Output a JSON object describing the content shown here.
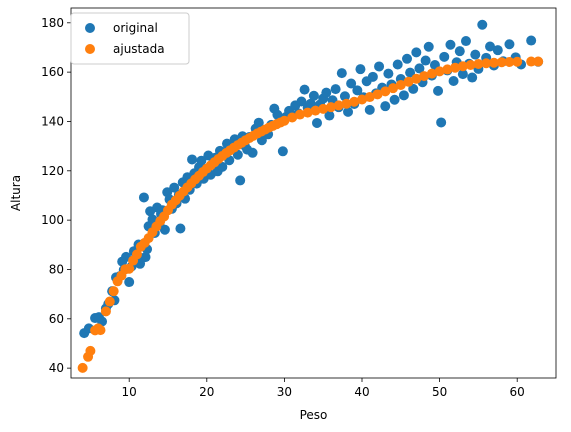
{
  "chart_data": {
    "type": "scatter",
    "xlabel": "Peso",
    "ylabel": "Altura",
    "xlim": [
      2.5,
      65
    ],
    "ylim": [
      36,
      186
    ],
    "xticks": [
      10,
      20,
      30,
      40,
      50,
      60
    ],
    "yticks": [
      40,
      60,
      80,
      100,
      120,
      140,
      160,
      180
    ],
    "grid": false,
    "legend_position": "top-left",
    "series": [
      {
        "name": "original",
        "color": "#1f77b4",
        "points": [
          [
            4.2,
            54.2
          ],
          [
            4.8,
            56.1
          ],
          [
            5.6,
            60.3
          ],
          [
            6.1,
            60.7
          ],
          [
            6.5,
            58.9
          ],
          [
            7.0,
            64.2
          ],
          [
            7.3,
            66.0
          ],
          [
            7.8,
            71.2
          ],
          [
            8.1,
            67.5
          ],
          [
            8.3,
            76.8
          ],
          [
            8.8,
            77.3
          ],
          [
            9.1,
            83.2
          ],
          [
            9.3,
            79.8
          ],
          [
            9.6,
            85.1
          ],
          [
            10.0,
            74.9
          ],
          [
            10.3,
            81.2
          ],
          [
            10.6,
            87.4
          ],
          [
            10.9,
            86.0
          ],
          [
            11.2,
            90.1
          ],
          [
            11.4,
            82.3
          ],
          [
            11.6,
            84.6
          ],
          [
            11.9,
            109.2
          ],
          [
            12.1,
            85.0
          ],
          [
            12.3,
            88.2
          ],
          [
            12.5,
            97.5
          ],
          [
            12.7,
            103.6
          ],
          [
            13.0,
            100.3
          ],
          [
            13.3,
            94.8
          ],
          [
            13.6,
            105.1
          ],
          [
            13.9,
            98.2
          ],
          [
            14.1,
            102.5
          ],
          [
            14.3,
            104.0
          ],
          [
            14.6,
            96.1
          ],
          [
            14.9,
            111.3
          ],
          [
            15.2,
            108.4
          ],
          [
            15.5,
            104.6
          ],
          [
            15.8,
            113.2
          ],
          [
            16.1,
            106.8
          ],
          [
            16.4,
            110.2
          ],
          [
            16.6,
            96.6
          ],
          [
            16.9,
            115.3
          ],
          [
            17.2,
            108.7
          ],
          [
            17.5,
            117.4
          ],
          [
            17.8,
            112.3
          ],
          [
            18.1,
            124.6
          ],
          [
            18.4,
            119.0
          ],
          [
            18.7,
            114.8
          ],
          [
            19.0,
            121.5
          ],
          [
            19.3,
            124.1
          ],
          [
            19.6,
            116.8
          ],
          [
            19.9,
            120.7
          ],
          [
            20.2,
            126.2
          ],
          [
            20.5,
            118.4
          ],
          [
            20.8,
            122.9
          ],
          [
            21.1,
            125.3
          ],
          [
            21.4,
            119.8
          ],
          [
            21.7,
            128.1
          ],
          [
            22.0,
            121.6
          ],
          [
            22.3,
            127.4
          ],
          [
            22.6,
            131.0
          ],
          [
            22.9,
            124.3
          ],
          [
            23.2,
            129.2
          ],
          [
            23.6,
            132.8
          ],
          [
            24.0,
            126.5
          ],
          [
            24.3,
            116.1
          ],
          [
            24.6,
            134.0
          ],
          [
            24.9,
            130.2
          ],
          [
            25.2,
            128.6
          ],
          [
            25.5,
            133.7
          ],
          [
            25.9,
            127.3
          ],
          [
            26.3,
            137.1
          ],
          [
            26.7,
            139.5
          ],
          [
            27.1,
            132.4
          ],
          [
            27.5,
            136.2
          ],
          [
            27.9,
            134.8
          ],
          [
            28.3,
            138.6
          ],
          [
            28.7,
            145.2
          ],
          [
            29.1,
            142.7
          ],
          [
            29.5,
            140.1
          ],
          [
            29.8,
            127.9
          ],
          [
            30.2,
            141.8
          ],
          [
            30.6,
            144.3
          ],
          [
            31.0,
            142.0
          ],
          [
            31.4,
            146.5
          ],
          [
            31.8,
            143.3
          ],
          [
            32.2,
            148.1
          ],
          [
            32.6,
            152.9
          ],
          [
            33.0,
            145.6
          ],
          [
            33.4,
            147.2
          ],
          [
            33.8,
            150.4
          ],
          [
            34.2,
            139.4
          ],
          [
            34.6,
            146.9
          ],
          [
            35.0,
            149.3
          ],
          [
            35.4,
            151.7
          ],
          [
            35.8,
            142.4
          ],
          [
            36.2,
            148.6
          ],
          [
            36.6,
            153.1
          ],
          [
            37.0,
            145.8
          ],
          [
            37.4,
            159.6
          ],
          [
            37.8,
            150.2
          ],
          [
            38.2,
            143.9
          ],
          [
            38.6,
            155.4
          ],
          [
            39.0,
            147.1
          ],
          [
            39.4,
            152.6
          ],
          [
            39.8,
            161.2
          ],
          [
            40.2,
            149.8
          ],
          [
            40.6,
            156.3
          ],
          [
            41.0,
            144.7
          ],
          [
            41.4,
            158.1
          ],
          [
            41.8,
            151.4
          ],
          [
            42.2,
            162.3
          ],
          [
            42.6,
            153.7
          ],
          [
            43.0,
            146.2
          ],
          [
            43.4,
            159.4
          ],
          [
            43.8,
            155.0
          ],
          [
            44.2,
            148.8
          ],
          [
            44.6,
            163.1
          ],
          [
            45.0,
            157.2
          ],
          [
            45.4,
            150.6
          ],
          [
            45.8,
            165.4
          ],
          [
            46.2,
            159.8
          ],
          [
            46.6,
            153.2
          ],
          [
            47.0,
            168.0
          ],
          [
            47.4,
            161.5
          ],
          [
            47.8,
            155.9
          ],
          [
            48.2,
            164.7
          ],
          [
            48.6,
            170.3
          ],
          [
            49.0,
            158.6
          ],
          [
            49.4,
            162.9
          ],
          [
            49.8,
            152.4
          ],
          [
            50.2,
            139.6
          ],
          [
            50.6,
            166.2
          ],
          [
            51.0,
            160.7
          ],
          [
            51.4,
            171.1
          ],
          [
            51.8,
            156.4
          ],
          [
            52.2,
            164.0
          ],
          [
            52.6,
            168.5
          ],
          [
            53.0,
            159.2
          ],
          [
            53.4,
            172.6
          ],
          [
            53.8,
            163.4
          ],
          [
            54.2,
            157.8
          ],
          [
            54.6,
            167.1
          ],
          [
            55.0,
            161.3
          ],
          [
            55.5,
            179.2
          ],
          [
            56.0,
            165.8
          ],
          [
            56.5,
            170.4
          ],
          [
            57.0,
            162.7
          ],
          [
            57.5,
            168.9
          ],
          [
            58.2,
            164.4
          ],
          [
            59.0,
            171.3
          ],
          [
            59.8,
            166.0
          ],
          [
            60.5,
            163.1
          ],
          [
            61.8,
            172.8
          ],
          [
            62.7,
            164.2
          ]
        ]
      },
      {
        "name": "ajustada",
        "color": "#ff7f0e",
        "points": [
          [
            4.0,
            40.1
          ],
          [
            4.7,
            44.6
          ],
          [
            5.0,
            47.0
          ],
          [
            5.6,
            55.3
          ],
          [
            6.0,
            56.1
          ],
          [
            6.3,
            55.4
          ],
          [
            7.0,
            63.0
          ],
          [
            7.5,
            67.0
          ],
          [
            8.0,
            71.2
          ],
          [
            8.5,
            75.2
          ],
          [
            9.0,
            77.5
          ],
          [
            9.5,
            80.1
          ],
          [
            10.0,
            80.3
          ],
          [
            10.5,
            83.6
          ],
          [
            11.0,
            86.1
          ],
          [
            11.5,
            89.2
          ],
          [
            12.0,
            90.8
          ],
          [
            12.5,
            92.7
          ],
          [
            13.0,
            95.1
          ],
          [
            13.5,
            97.4
          ],
          [
            14.0,
            99.6
          ],
          [
            14.5,
            101.5
          ],
          [
            15.0,
            104.0
          ],
          [
            15.5,
            106.3
          ],
          [
            16.0,
            108.0
          ],
          [
            16.5,
            109.9
          ],
          [
            17.0,
            111.6
          ],
          [
            17.5,
            113.3
          ],
          [
            18.0,
            114.9
          ],
          [
            18.5,
            116.5
          ],
          [
            19.0,
            118.0
          ],
          [
            19.5,
            119.5
          ],
          [
            20.0,
            120.9
          ],
          [
            20.5,
            122.2
          ],
          [
            21.0,
            123.5
          ],
          [
            21.5,
            124.8
          ],
          [
            22.0,
            126.0
          ],
          [
            22.5,
            127.2
          ],
          [
            23.0,
            128.3
          ],
          [
            23.5,
            129.4
          ],
          [
            24.0,
            130.4
          ],
          [
            24.5,
            131.4
          ],
          [
            25.0,
            132.4
          ],
          [
            25.5,
            133.3
          ],
          [
            26.0,
            134.2
          ],
          [
            26.5,
            135.1
          ],
          [
            27.0,
            135.9
          ],
          [
            27.5,
            136.7
          ],
          [
            28.0,
            137.5
          ],
          [
            28.5,
            138.2
          ],
          [
            29.0,
            138.9
          ],
          [
            29.5,
            139.6
          ],
          [
            30.0,
            140.3
          ],
          [
            31.0,
            141.6
          ],
          [
            32.0,
            142.8
          ],
          [
            33.0,
            143.6
          ],
          [
            34.0,
            144.4
          ],
          [
            35.0,
            145.1
          ],
          [
            36.0,
            145.8
          ],
          [
            37.0,
            146.5
          ],
          [
            38.0,
            147.2
          ],
          [
            39.0,
            148.0
          ],
          [
            40.0,
            148.9
          ],
          [
            41.0,
            149.9
          ],
          [
            42.0,
            151.0
          ],
          [
            43.0,
            152.2
          ],
          [
            44.0,
            153.5
          ],
          [
            45.0,
            154.8
          ],
          [
            46.0,
            156.1
          ],
          [
            47.0,
            157.3
          ],
          [
            48.0,
            158.4
          ],
          [
            49.0,
            159.4
          ],
          [
            50.0,
            160.3
          ],
          [
            51.0,
            161.1
          ],
          [
            52.0,
            161.8
          ],
          [
            53.0,
            162.4
          ],
          [
            54.0,
            162.9
          ],
          [
            55.0,
            163.3
          ],
          [
            56.0,
            163.6
          ],
          [
            57.0,
            163.8
          ],
          [
            58.0,
            164.0
          ],
          [
            59.0,
            164.1
          ],
          [
            60.0,
            164.2
          ],
          [
            61.8,
            164.3
          ],
          [
            62.7,
            164.3
          ]
        ]
      }
    ]
  }
}
